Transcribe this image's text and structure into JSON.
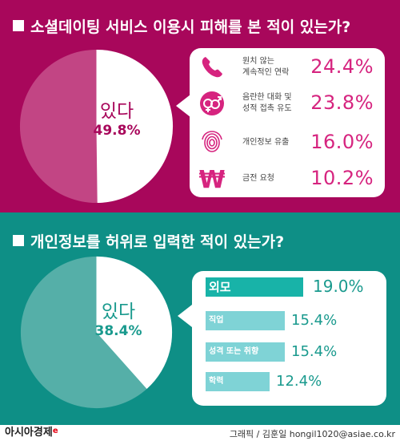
{
  "colors": {
    "section1_bg": "#a8075b",
    "section2_bg": "#0e8f86",
    "accent_pink": "#d6247f",
    "accent_teal": "#18b3a8",
    "bar_light": "#7fd3d6"
  },
  "section1": {
    "title": "소셜데이팅 서비스 이용시 피해를 본 적이 있는가?",
    "pie_word": "있다",
    "pie_percent": "49.8%",
    "items": [
      {
        "icon": "phone-icon",
        "label_line1": "원치 않는",
        "label_line2": "계속적인 연락",
        "value": "24.4%"
      },
      {
        "icon": "gender-symbols-icon",
        "label_line1": "음란한 대화 및",
        "label_line2": "성적 접촉 유도",
        "value": "23.8%"
      },
      {
        "icon": "fingerprint-icon",
        "label_line1": "개인정보 유출",
        "label_line2": "",
        "value": "16.0%"
      },
      {
        "icon": "won-icon",
        "label_line1": "금전 요청",
        "label_line2": "",
        "value": "10.2%"
      }
    ]
  },
  "section2": {
    "title": "개인정보를 허위로 입력한 적이 있는가?",
    "pie_word": "있다",
    "pie_percent": "38.4%",
    "bars": [
      {
        "label": "외모",
        "value": "19.0%"
      },
      {
        "label": "직업",
        "value": "15.4%"
      },
      {
        "label": "성격 또는 취향",
        "value": "15.4%"
      },
      {
        "label": "학력",
        "value": "12.4%"
      }
    ]
  },
  "footer": {
    "logo": "아시아경제",
    "logo_mark": "e",
    "credit": "그래픽 / 김훈일 hongil1020@asiae.co.kr"
  },
  "chart_data": [
    {
      "type": "pie",
      "title": "소셜데이팅 서비스 이용시 피해를 본 적이 있는가?",
      "categories": [
        "있다",
        ""
      ],
      "values": [
        49.8,
        50.2
      ]
    },
    {
      "type": "bar",
      "title": "소셜데이팅 서비스 이용시 피해를 본 적이 있는가?",
      "categories": [
        "원치 않는 계속적인 연락",
        "음란한 대화 및 성적 접촉 유도",
        "개인정보 유출",
        "금전 요청"
      ],
      "values": [
        24.4,
        23.8,
        16.0,
        10.2
      ]
    },
    {
      "type": "pie",
      "title": "개인정보를 허위로 입력한 적이 있는가?",
      "categories": [
        "있다",
        ""
      ],
      "values": [
        38.4,
        61.6
      ]
    },
    {
      "type": "bar",
      "title": "개인정보를 허위로 입력한 적이 있는가?",
      "categories": [
        "외모",
        "직업",
        "성격 또는 취향",
        "학력"
      ],
      "values": [
        19.0,
        15.4,
        15.4,
        12.4
      ]
    }
  ]
}
